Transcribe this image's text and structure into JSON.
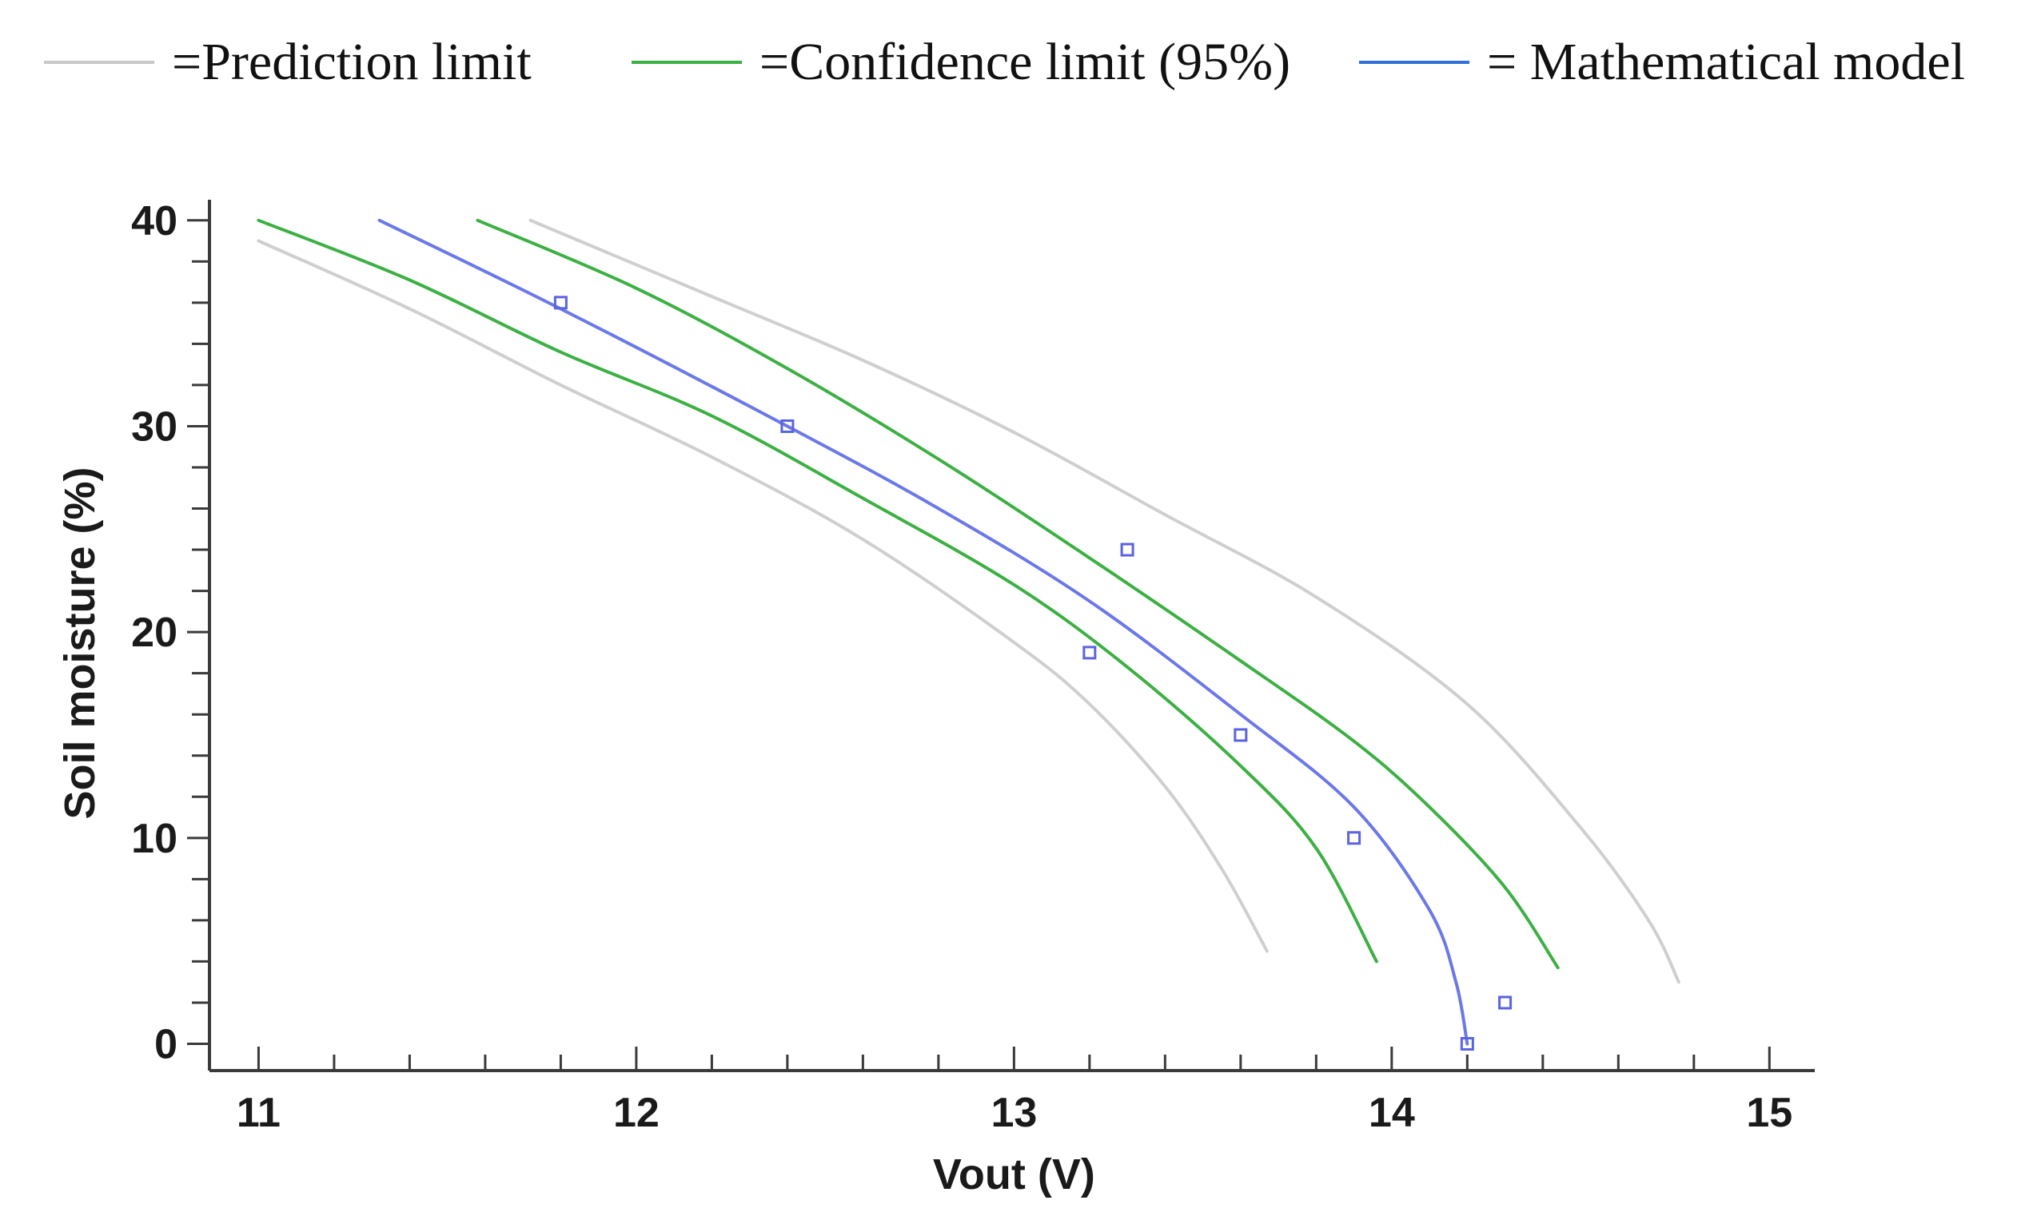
{
  "chart_data": {
    "type": "line",
    "title": "",
    "xlabel": "Vout (V)",
    "ylabel": "Soil moisture (%)",
    "xlim": [
      10.87,
      15.12
    ],
    "ylim": [
      -1.3,
      41
    ],
    "xticks": [
      11,
      12,
      13,
      14,
      15
    ],
    "yticks": [
      0,
      10,
      20,
      30,
      40
    ],
    "grid": false,
    "legend": {
      "position": "top",
      "items": [
        {
          "label": "=Prediction limit",
          "color": "#c8c8c8"
        },
        {
          "label": "=Confidence limit (95%)",
          "color": "#3cb043"
        },
        {
          "label": "= Mathematical model",
          "color": "#2f6fd6"
        }
      ]
    },
    "series": [
      {
        "name": "Prediction limit (lower)",
        "color": "#cfcfcf",
        "points": [
          [
            11.0,
            39
          ],
          [
            11.4,
            35.7
          ],
          [
            11.8,
            32
          ],
          [
            12.2,
            28.5
          ],
          [
            12.6,
            24.5
          ],
          [
            13.0,
            19.5
          ],
          [
            13.2,
            16.5
          ],
          [
            13.4,
            12.5
          ],
          [
            13.55,
            8.5
          ],
          [
            13.67,
            4.5
          ]
        ]
      },
      {
        "name": "Prediction limit (upper)",
        "color": "#cfcfcf",
        "points": [
          [
            11.72,
            40
          ],
          [
            12.2,
            36.3
          ],
          [
            12.6,
            33.2
          ],
          [
            13.0,
            29.7
          ],
          [
            13.4,
            25.7
          ],
          [
            13.8,
            21.7
          ],
          [
            14.2,
            16.5
          ],
          [
            14.5,
            10.5
          ],
          [
            14.68,
            6
          ],
          [
            14.76,
            3
          ]
        ]
      },
      {
        "name": "Confidence limit (lower)",
        "color": "#3cb043",
        "points": [
          [
            11.0,
            40
          ],
          [
            11.4,
            37.1
          ],
          [
            11.8,
            33.6
          ],
          [
            12.2,
            30.5
          ],
          [
            12.6,
            26.5
          ],
          [
            13.0,
            22.3
          ],
          [
            13.3,
            18.3
          ],
          [
            13.6,
            13.5
          ],
          [
            13.8,
            9.5
          ],
          [
            13.96,
            4
          ]
        ]
      },
      {
        "name": "Confidence limit (upper)",
        "color": "#3cb043",
        "points": [
          [
            11.58,
            40
          ],
          [
            12.0,
            36.7
          ],
          [
            12.4,
            32.8
          ],
          [
            12.8,
            28.4
          ],
          [
            13.2,
            23.6
          ],
          [
            13.6,
            18.6
          ],
          [
            13.9,
            14.7
          ],
          [
            14.1,
            11.5
          ],
          [
            14.3,
            7.6
          ],
          [
            14.44,
            3.7
          ]
        ]
      },
      {
        "name": "Mathematical model",
        "color": "#6b78e8",
        "points": [
          [
            11.32,
            40
          ],
          [
            11.8,
            35.7
          ],
          [
            12.4,
            30
          ],
          [
            12.8,
            26
          ],
          [
            13.2,
            21.5
          ],
          [
            13.6,
            16
          ],
          [
            13.9,
            11.5
          ],
          [
            14.1,
            6.5
          ],
          [
            14.17,
            3
          ],
          [
            14.2,
            0
          ]
        ]
      }
    ],
    "observations": {
      "name": "Observed data",
      "color": "#5a63e0",
      "points": [
        [
          11.8,
          36
        ],
        [
          12.4,
          30
        ],
        [
          13.2,
          19
        ],
        [
          13.3,
          24
        ],
        [
          13.6,
          15
        ],
        [
          13.9,
          10
        ],
        [
          14.2,
          0
        ],
        [
          14.3,
          2
        ]
      ]
    }
  }
}
